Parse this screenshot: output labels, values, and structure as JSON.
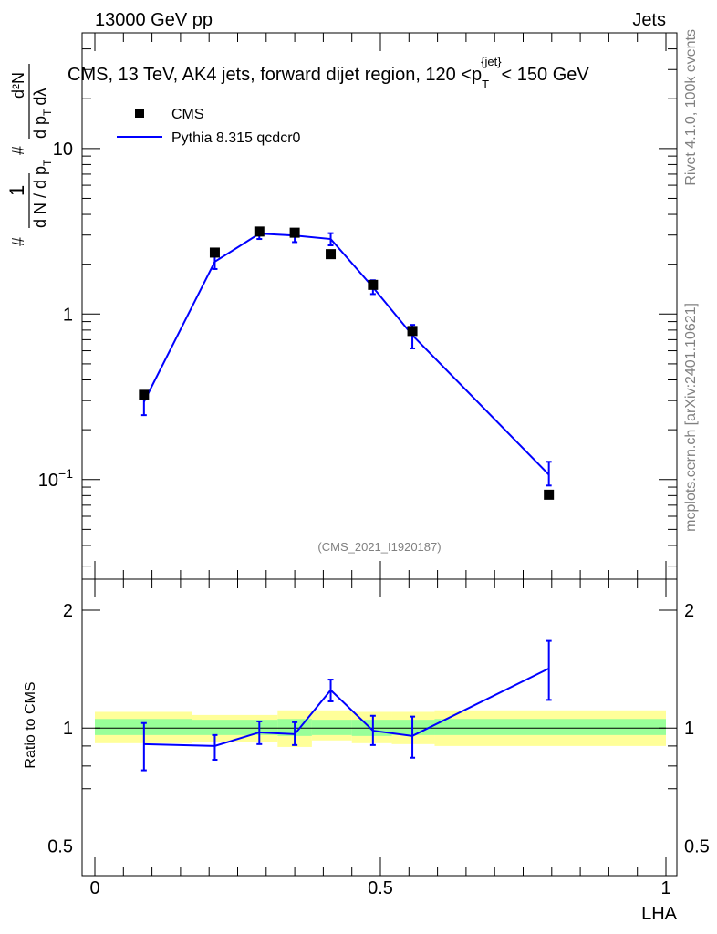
{
  "header": {
    "left": "13000 GeV pp",
    "right": "Jets"
  },
  "side_text": {
    "rivet": "Rivet 4.1.0,  100k events",
    "mcplots": "mcplots.cern.ch [arXiv:2401.10621]"
  },
  "watermark": "(CMS_2021_I1920187)",
  "colors": {
    "data": "#000000",
    "mc": "#0000ff",
    "band_inner": "#99ff99",
    "band_outer": "#ffff99"
  },
  "chart_data": [
    {
      "type": "scatter",
      "scale": "log",
      "title": "CMS, 13 TeV, AK4 jets, forward dijet region, 120 <p_T^{jet}< 150 GeV",
      "title_parts": {
        "before": "CMS, 13 TeV, AK4 jets, forward dijet region, 120 <p",
        "sub": "T",
        "sup": "{jet}",
        "after": "< 150 GeV"
      },
      "ylabel": "1/(dN/dp_T) d^2N/(dp_T dλ)",
      "ylabel_parts": {
        "hash": "#",
        "one": "1",
        "dN": "d N / d p",
        "sub_T": "T",
        "d2N": "d²N",
        "dpT": "d p",
        "dlambda": "dλ"
      },
      "xlim": [
        0,
        1
      ],
      "ylim": [
        0.025,
        50
      ],
      "yticks": [
        {
          "value": 0.1,
          "base": "10",
          "exp": "−1"
        },
        {
          "value": 1,
          "base": "1",
          "exp": ""
        },
        {
          "value": 10,
          "base": "10",
          "exp": ""
        }
      ],
      "legend": {
        "position": "top-left",
        "entries": [
          {
            "label": "CMS",
            "style": "marker"
          },
          {
            "label": "Pythia 8.315 qcdcr0",
            "style": "line"
          }
        ]
      },
      "series": [
        {
          "name": "CMS",
          "x": [
            0.086,
            0.21,
            0.288,
            0.35,
            0.413,
            0.487,
            0.556,
            0.795
          ],
          "values": [
            0.325,
            2.35,
            3.15,
            3.1,
            2.3,
            1.5,
            0.79,
            0.081
          ]
        },
        {
          "name": "Pythia 8.315 qcdcr0",
          "x": [
            0.086,
            0.21,
            0.288,
            0.35,
            0.413,
            0.487,
            0.556,
            0.795
          ],
          "values": [
            0.295,
            2.07,
            3.06,
            2.98,
            2.84,
            1.45,
            0.745,
            0.107
          ],
          "err_low": [
            0.245,
            1.87,
            2.84,
            2.72,
            2.6,
            1.32,
            0.62,
            0.092
          ],
          "err_high": [
            0.34,
            2.25,
            3.29,
            3.22,
            3.08,
            1.6,
            0.86,
            0.128
          ]
        }
      ]
    },
    {
      "type": "line",
      "title": "",
      "xlabel": "LHA",
      "ylabel": "Ratio to CMS",
      "xlim": [
        0,
        1
      ],
      "ylim": [
        0.42,
        2.4
      ],
      "yticks": [
        {
          "value": 0.5,
          "label": "0.5"
        },
        {
          "value": 1,
          "label": "1"
        },
        {
          "value": 2,
          "label": "2"
        }
      ],
      "xticks": [
        {
          "value": 0,
          "label": "0"
        },
        {
          "value": 0.5,
          "label": "0.5"
        },
        {
          "value": 1,
          "label": "1"
        }
      ],
      "bands": [
        {
          "x0": 0.0,
          "x1": 0.17,
          "inner": [
            0.96,
            1.055
          ],
          "outer": [
            0.915,
            1.1
          ]
        },
        {
          "x0": 0.17,
          "x1": 0.32,
          "inner": [
            0.96,
            1.05
          ],
          "outer": [
            0.92,
            1.08
          ]
        },
        {
          "x0": 0.32,
          "x1": 0.38,
          "inner": [
            0.955,
            1.055
          ],
          "outer": [
            0.895,
            1.11
          ]
        },
        {
          "x0": 0.38,
          "x1": 0.45,
          "inner": [
            0.96,
            1.05
          ],
          "outer": [
            0.93,
            1.11
          ]
        },
        {
          "x0": 0.45,
          "x1": 0.52,
          "inner": [
            0.955,
            1.05
          ],
          "outer": [
            0.915,
            1.1
          ]
        },
        {
          "x0": 0.52,
          "x1": 0.595,
          "inner": [
            0.96,
            1.05
          ],
          "outer": [
            0.91,
            1.1
          ]
        },
        {
          "x0": 0.595,
          "x1": 1.0,
          "inner": [
            0.96,
            1.055
          ],
          "outer": [
            0.9,
            1.11
          ]
        }
      ],
      "series": [
        {
          "name": "Pythia 8.315 qcdcr0 / CMS",
          "x": [
            0.086,
            0.21,
            0.288,
            0.35,
            0.413,
            0.487,
            0.556,
            0.795
          ],
          "values": [
            0.91,
            0.9,
            0.975,
            0.965,
            1.25,
            0.985,
            0.955,
            1.42
          ],
          "err_low": [
            0.78,
            0.83,
            0.91,
            0.905,
            1.17,
            0.905,
            0.84,
            1.18
          ],
          "err_high": [
            1.03,
            0.96,
            1.04,
            1.035,
            1.33,
            1.075,
            1.07,
            1.67
          ]
        }
      ]
    }
  ]
}
